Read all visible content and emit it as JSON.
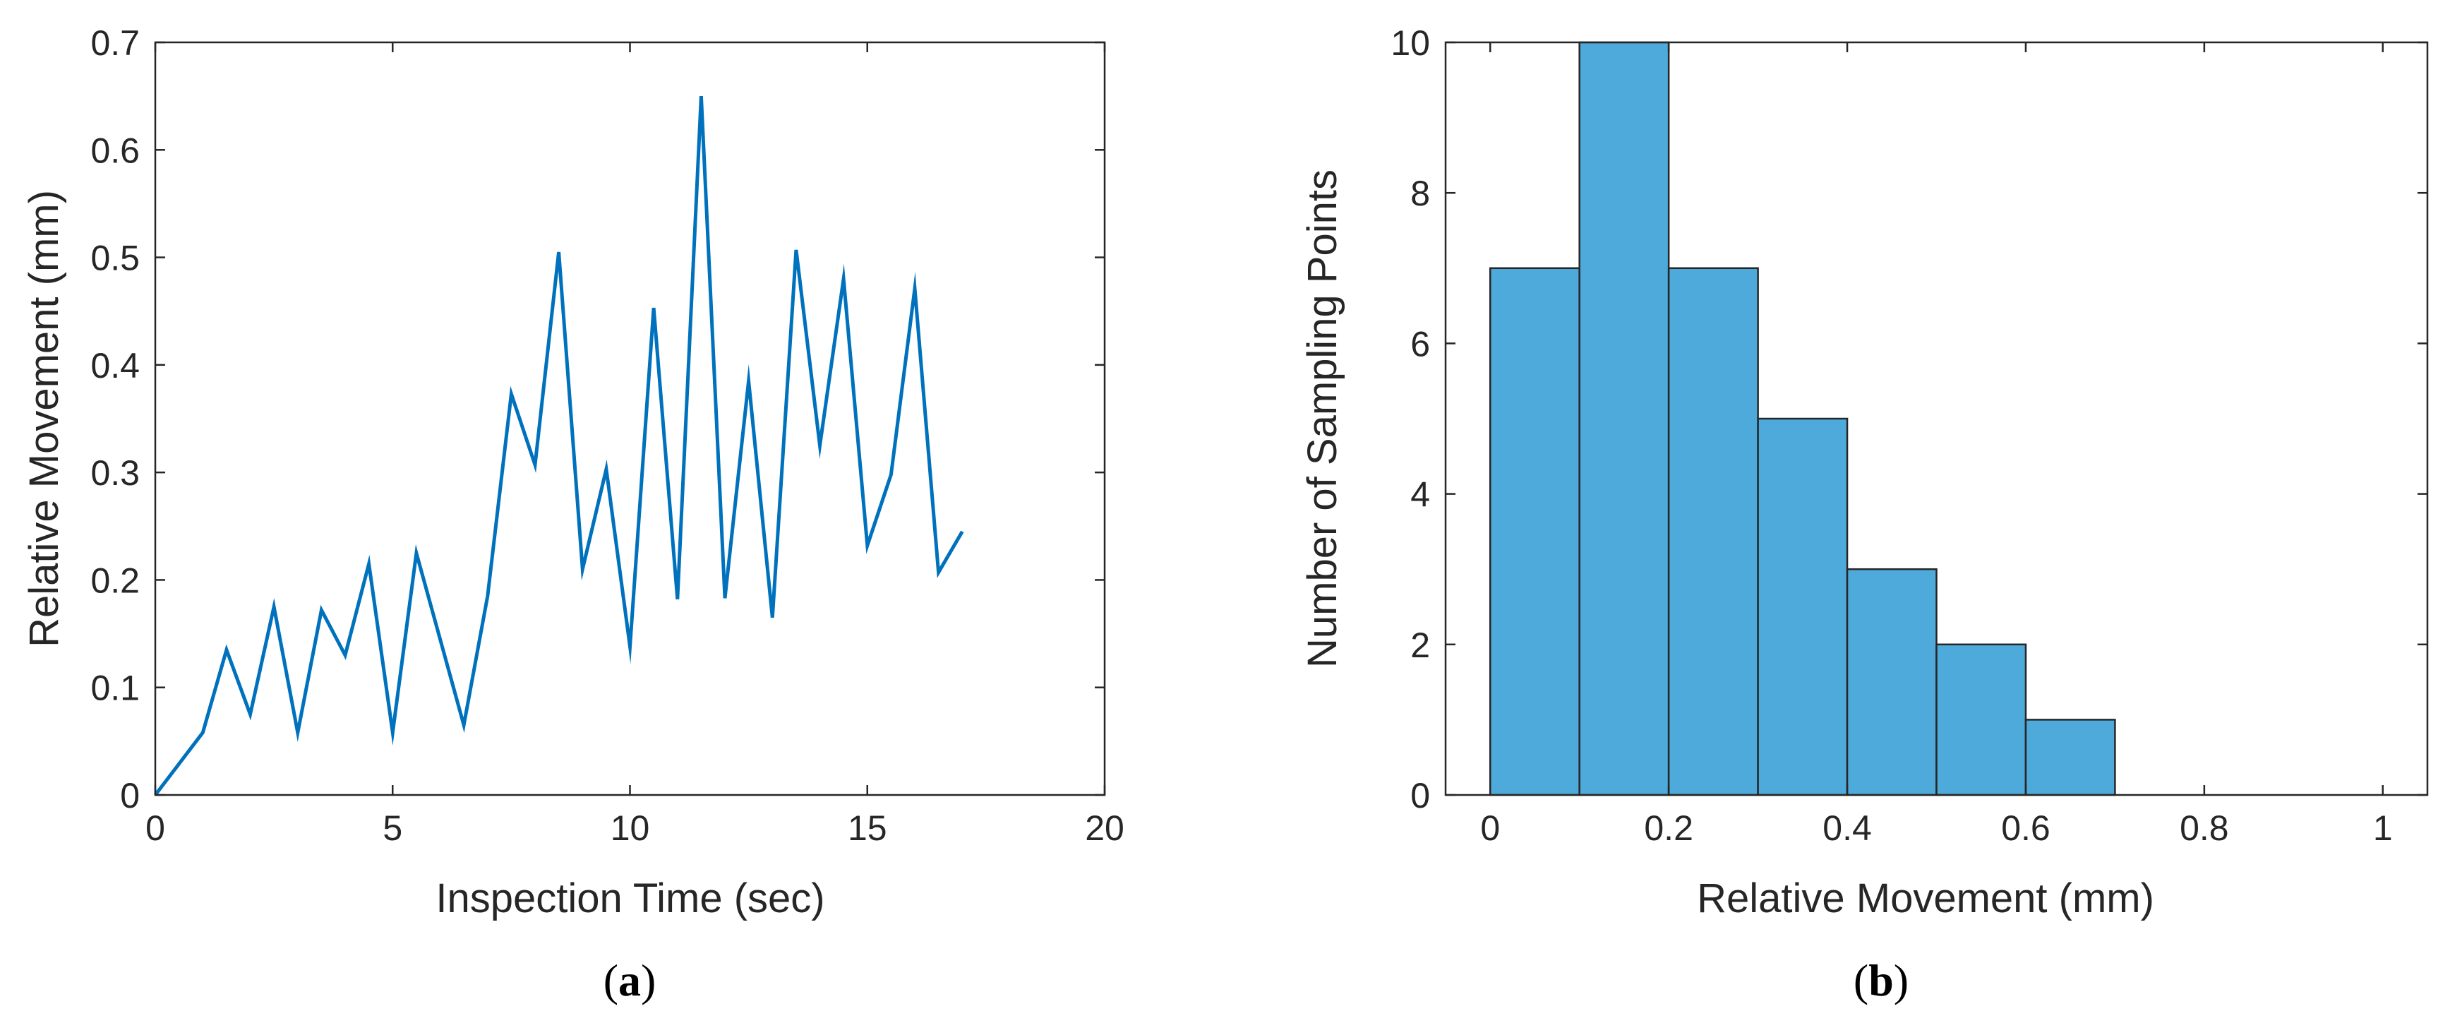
{
  "chart_data": [
    {
      "id": "a",
      "type": "line",
      "panel_label": "a",
      "title": "",
      "xlabel": "Inspection Time (sec)",
      "ylabel": "Relative Movement (mm)",
      "xlim": [
        0,
        20
      ],
      "ylim": [
        0,
        0.7
      ],
      "xticks": [
        0,
        5,
        10,
        15,
        20
      ],
      "xtick_labels": [
        "0",
        "5",
        "10",
        "15",
        "20"
      ],
      "yticks": [
        0,
        0.1,
        0.2,
        0.3,
        0.4,
        0.5,
        0.6,
        0.7
      ],
      "ytick_labels": [
        "0",
        "0.1",
        "0.2",
        "0.3",
        "0.4",
        "0.5",
        "0.6",
        "0.7"
      ],
      "grid": false,
      "color": "#0072BD",
      "series": [
        {
          "name": "Relative Movement",
          "x": [
            0,
            1,
            1.5,
            2,
            2.5,
            3,
            3.5,
            4,
            4.5,
            5,
            5.5,
            6.5,
            7,
            7.5,
            8,
            8.5,
            9,
            9.5,
            10,
            10.5,
            11,
            11.5,
            12,
            12.5,
            13,
            13.5,
            14,
            14.5,
            15,
            15.5,
            16,
            16.5,
            17
          ],
          "y": [
            0,
            0.058,
            0.135,
            0.075,
            0.175,
            0.058,
            0.172,
            0.13,
            0.215,
            0.058,
            0.225,
            0.065,
            0.185,
            0.373,
            0.307,
            0.505,
            0.21,
            0.303,
            0.138,
            0.453,
            0.182,
            0.65,
            0.183,
            0.385,
            0.165,
            0.507,
            0.325,
            0.48,
            0.232,
            0.298,
            0.471,
            0.207,
            0.245
          ]
        }
      ]
    },
    {
      "id": "b",
      "type": "bar",
      "panel_label": "b",
      "title": "",
      "xlabel": "Relative Movement (mm)",
      "ylabel": "Number of Sampling Points",
      "xlim": [
        -0.05,
        1.05
      ],
      "ylim": [
        0,
        10
      ],
      "xticks": [
        0,
        0.2,
        0.4,
        0.6,
        0.8,
        1
      ],
      "xtick_labels": [
        "0",
        "0.2",
        "0.4",
        "0.6",
        "0.8",
        "1"
      ],
      "yticks": [
        0,
        2,
        4,
        6,
        8,
        10
      ],
      "ytick_labels": [
        "0",
        "2",
        "4",
        "6",
        "8",
        "10"
      ],
      "grid": false,
      "color": "#4FAADC",
      "edge_color": "#262626",
      "bin_edges": [
        0,
        0.1,
        0.2,
        0.3,
        0.4,
        0.5,
        0.6,
        0.7,
        0.8,
        0.9,
        1.0
      ],
      "values": [
        7,
        10,
        7,
        5,
        3,
        2,
        1,
        0,
        0,
        0
      ]
    }
  ]
}
